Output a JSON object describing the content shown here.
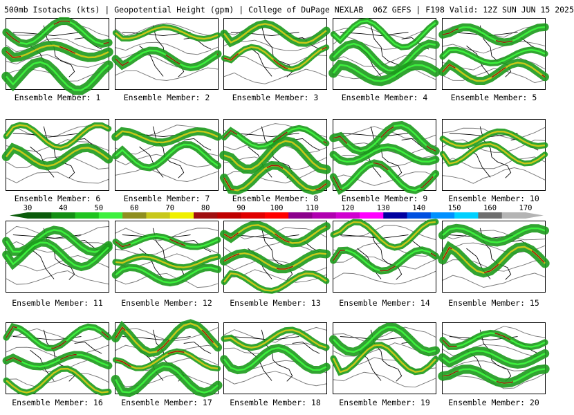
{
  "header": {
    "title": "500mb Isotachs (kts) | Geopotential Height (gpm) | College of DuPage NEXLAB  06Z GEFS | F198 Valid: 12Z SUN JUN 15 2025"
  },
  "members": [
    {
      "label": "Ensemble Member: 1"
    },
    {
      "label": "Ensemble Member: 2"
    },
    {
      "label": "Ensemble Member: 3"
    },
    {
      "label": "Ensemble Member: 4"
    },
    {
      "label": "Ensemble Member: 5"
    },
    {
      "label": "Ensemble Member: 6"
    },
    {
      "label": "Ensemble Member: 7"
    },
    {
      "label": "Ensemble Member: 8"
    },
    {
      "label": "Ensemble Member: 9"
    },
    {
      "label": "Ensemble Member: 10"
    },
    {
      "label": "Ensemble Member: 11"
    },
    {
      "label": "Ensemble Member: 12"
    },
    {
      "label": "Ensemble Member: 13"
    },
    {
      "label": "Ensemble Member: 14"
    },
    {
      "label": "Ensemble Member: 15"
    },
    {
      "label": "Ensemble Member: 16"
    },
    {
      "label": "Ensemble Member: 17"
    },
    {
      "label": "Ensemble Member: 18"
    },
    {
      "label": "Ensemble Member: 19"
    },
    {
      "label": "Ensemble Member: 20"
    }
  ],
  "colorbar": {
    "labels": [
      "30",
      "40",
      "50",
      "60",
      "70",
      "80",
      "90",
      "100",
      "110",
      "120",
      "130",
      "140",
      "150",
      "160",
      "170"
    ],
    "colors": [
      "#0b5c0b",
      "#138f13",
      "#1fc41f",
      "#3df03d",
      "#8f8f1f",
      "#c8c81a",
      "#f0f000",
      "#a01010",
      "#c00000",
      "#e00000",
      "#ff0000",
      "#8c008c",
      "#b000b0",
      "#d000d0",
      "#ff00ff",
      "#0000a0",
      "#0050e0",
      "#0090ff",
      "#00d0ff",
      "#6e6e6e",
      "#b4b4b4"
    ]
  }
}
